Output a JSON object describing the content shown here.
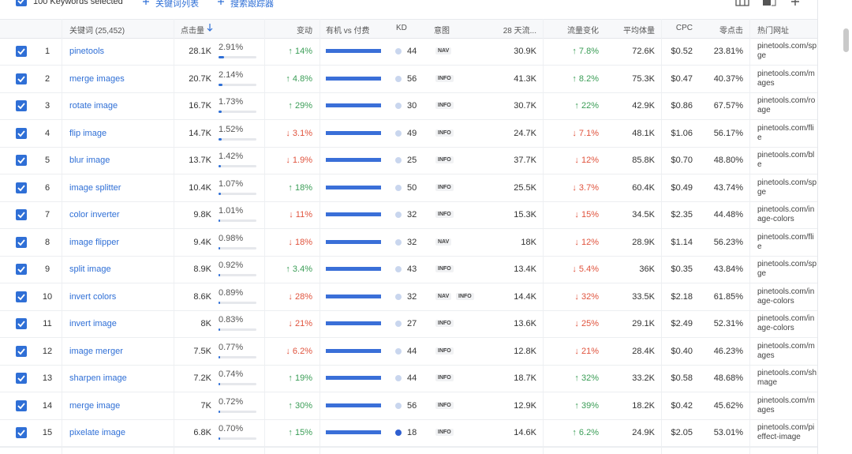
{
  "toolbar": {
    "selected": "100 Keywords selected",
    "keyword_list": "关键词列表",
    "tracker": "搜索跟踪器"
  },
  "table": {
    "headers": {
      "keyword": "关键词 (25,452)",
      "clicks": "点击量",
      "change": "变动",
      "organic_paid": "有机 vs 付费",
      "kd": "KD",
      "intent": "意图",
      "d28": "28 天流...",
      "traffic_change": "流量变化",
      "volume": "平均体量",
      "cpc": "CPC",
      "zero_click": "零点击",
      "url": "热门网址"
    },
    "rows": [
      {
        "rank": 1,
        "keyword": "pinetools",
        "clicks": "28.1K",
        "share": "2.91%",
        "change": "↑ 14%",
        "kd": 44,
        "intent": [
          "NAV"
        ],
        "d28": "30.9K",
        "traffic_change": "↑ 7.8%",
        "volume": "72.6K",
        "cpc": "$0.52",
        "zero_click": "23.81%",
        "url": [
          "pinetools.com/sp",
          "ge"
        ]
      },
      {
        "rank": 2,
        "keyword": "merge images",
        "clicks": "20.7K",
        "share": "2.14%",
        "change": "↑ 4.8%",
        "kd": 56,
        "intent": [
          "INFO"
        ],
        "d28": "41.3K",
        "traffic_change": "↑ 8.2%",
        "volume": "75.3K",
        "cpc": "$0.47",
        "zero_click": "40.37%",
        "url": [
          "pinetools.com/m",
          "ages"
        ]
      },
      {
        "rank": 3,
        "keyword": "rotate image",
        "clicks": "16.7K",
        "share": "1.73%",
        "change": "↑ 29%",
        "kd": 30,
        "intent": [
          "INFO"
        ],
        "d28": "30.7K",
        "traffic_change": "↑ 22%",
        "volume": "42.9K",
        "cpc": "$0.86",
        "zero_click": "67.57%",
        "url": [
          "pinetools.com/ro",
          "age"
        ]
      },
      {
        "rank": 4,
        "keyword": "flip image",
        "clicks": "14.7K",
        "share": "1.52%",
        "change": "↓ 3.1%",
        "kd": 49,
        "intent": [
          "INFO"
        ],
        "d28": "24.7K",
        "traffic_change": "↓ 7.1%",
        "volume": "48.1K",
        "cpc": "$1.06",
        "zero_click": "56.17%",
        "url": [
          "pinetools.com/fli",
          "e"
        ]
      },
      {
        "rank": 5,
        "keyword": "blur image",
        "clicks": "13.7K",
        "share": "1.42%",
        "change": "↓ 1.9%",
        "kd": 25,
        "intent": [
          "INFO"
        ],
        "d28": "37.7K",
        "traffic_change": "↓ 12%",
        "volume": "85.8K",
        "cpc": "$0.70",
        "zero_click": "48.80%",
        "url": [
          "pinetools.com/bl",
          "e"
        ]
      },
      {
        "rank": 6,
        "keyword": "image splitter",
        "clicks": "10.4K",
        "share": "1.07%",
        "change": "↑ 18%",
        "kd": 50,
        "intent": [
          "INFO"
        ],
        "d28": "25.5K",
        "traffic_change": "↓ 3.7%",
        "volume": "60.4K",
        "cpc": "$0.49",
        "zero_click": "43.74%",
        "url": [
          "pinetools.com/sp",
          "ge"
        ]
      },
      {
        "rank": 7,
        "keyword": "color inverter",
        "clicks": "9.8K",
        "share": "1.01%",
        "change": "↓ 11%",
        "kd": 32,
        "intent": [
          "INFO"
        ],
        "d28": "15.3K",
        "traffic_change": "↓ 15%",
        "volume": "34.5K",
        "cpc": "$2.35",
        "zero_click": "44.48%",
        "url": [
          "pinetools.com/in",
          "age-colors"
        ]
      },
      {
        "rank": 8,
        "keyword": "image flipper",
        "clicks": "9.4K",
        "share": "0.98%",
        "change": "↓ 18%",
        "kd": 32,
        "intent": [
          "NAV"
        ],
        "d28": "18K",
        "traffic_change": "↓ 12%",
        "volume": "28.9K",
        "cpc": "$1.14",
        "zero_click": "56.23%",
        "url": [
          "pinetools.com/fli",
          "e"
        ]
      },
      {
        "rank": 9,
        "keyword": "split image",
        "clicks": "8.9K",
        "share": "0.92%",
        "change": "↑ 3.4%",
        "kd": 43,
        "intent": [
          "INFO"
        ],
        "d28": "13.4K",
        "traffic_change": "↓ 5.4%",
        "volume": "36K",
        "cpc": "$0.35",
        "zero_click": "43.84%",
        "url": [
          "pinetools.com/sp",
          "ge"
        ]
      },
      {
        "rank": 10,
        "keyword": "invert colors",
        "clicks": "8.6K",
        "share": "0.89%",
        "change": "↓ 28%",
        "kd": 32,
        "intent": [
          "NAV",
          "INFO"
        ],
        "d28": "14.4K",
        "traffic_change": "↓ 32%",
        "volume": "33.5K",
        "cpc": "$2.18",
        "zero_click": "61.85%",
        "url": [
          "pinetools.com/in",
          "age-colors"
        ]
      },
      {
        "rank": 11,
        "keyword": "invert image",
        "clicks": "8K",
        "share": "0.83%",
        "change": "↓ 21%",
        "kd": 27,
        "intent": [
          "INFO"
        ],
        "d28": "13.6K",
        "traffic_change": "↓ 25%",
        "volume": "29.1K",
        "cpc": "$2.49",
        "zero_click": "52.31%",
        "url": [
          "pinetools.com/in",
          "age-colors"
        ]
      },
      {
        "rank": 12,
        "keyword": "image merger",
        "clicks": "7.5K",
        "share": "0.77%",
        "change": "↓ 6.2%",
        "kd": 44,
        "intent": [
          "INFO"
        ],
        "d28": "12.8K",
        "traffic_change": "↓ 21%",
        "volume": "28.4K",
        "cpc": "$0.40",
        "zero_click": "46.23%",
        "url": [
          "pinetools.com/m",
          "ages"
        ]
      },
      {
        "rank": 13,
        "keyword": "sharpen image",
        "clicks": "7.2K",
        "share": "0.74%",
        "change": "↑ 19%",
        "kd": 44,
        "intent": [
          "INFO"
        ],
        "d28": "18.7K",
        "traffic_change": "↑ 32%",
        "volume": "33.2K",
        "cpc": "$0.58",
        "zero_click": "48.68%",
        "url": [
          "pinetools.com/sh",
          "mage"
        ]
      },
      {
        "rank": 14,
        "keyword": "merge image",
        "clicks": "7K",
        "share": "0.72%",
        "change": "↑ 30%",
        "kd": 56,
        "intent": [
          "INFO"
        ],
        "d28": "12.9K",
        "traffic_change": "↑ 39%",
        "volume": "18.2K",
        "cpc": "$0.42",
        "zero_click": "45.62%",
        "url": [
          "pinetools.com/m",
          "ages"
        ]
      },
      {
        "rank": 15,
        "keyword": "pixelate image",
        "clicks": "6.8K",
        "share": "0.70%",
        "change": "↑ 15%",
        "kd": 18,
        "intent": [
          "INFO"
        ],
        "d28": "14.6K",
        "traffic_change": "↑ 6.2%",
        "volume": "24.9K",
        "cpc": "$2.05",
        "zero_click": "53.01%",
        "url": [
          "pinetools.com/pi",
          "effect-image"
        ]
      }
    ]
  }
}
